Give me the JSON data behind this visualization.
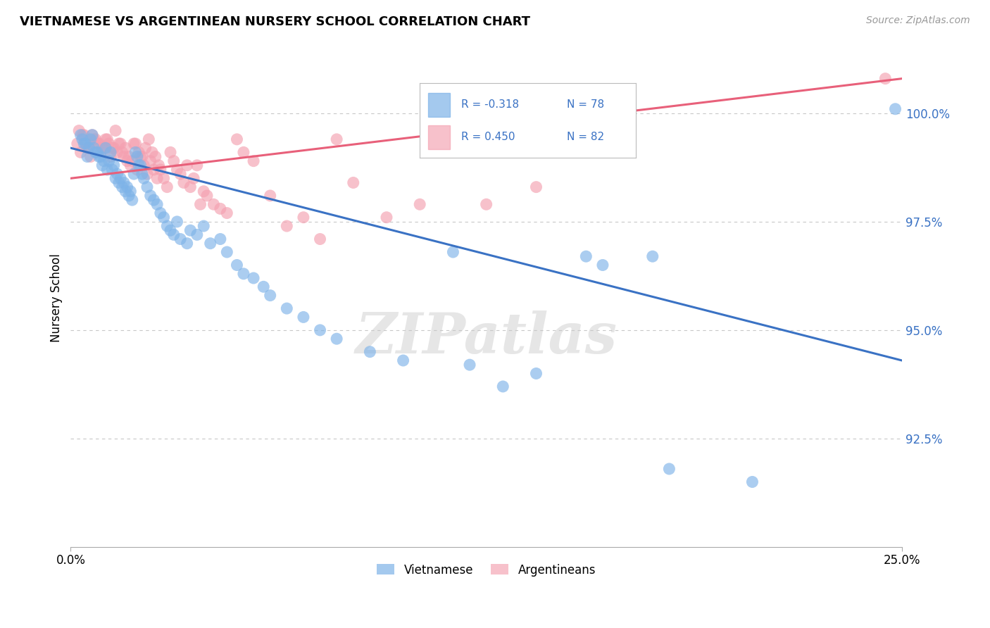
{
  "title": "VIETNAMESE VS ARGENTINEAN NURSERY SCHOOL CORRELATION CHART",
  "source": "Source: ZipAtlas.com",
  "ylabel": "Nursery School",
  "ytick_values": [
    92.5,
    95.0,
    97.5,
    100.0
  ],
  "xlim": [
    0.0,
    25.0
  ],
  "ylim": [
    90.0,
    101.5
  ],
  "blue_color": "#7EB3E8",
  "pink_color": "#F4A0B0",
  "blue_line_color": "#3A72C4",
  "pink_line_color": "#E8607A",
  "blue_R": "-0.318",
  "blue_N": "78",
  "pink_R": "0.450",
  "pink_N": "82",
  "watermark": "ZIPatlas",
  "blue_line_x0": 0.0,
  "blue_line_y0": 99.2,
  "blue_line_x1": 25.0,
  "blue_line_y1": 94.3,
  "pink_line_x0": 0.0,
  "pink_line_y0": 98.5,
  "pink_line_x1": 25.0,
  "pink_line_y1": 100.8,
  "blue_scatter_x": [
    0.3,
    0.4,
    0.5,
    0.6,
    0.7,
    0.8,
    0.9,
    1.0,
    1.1,
    1.2,
    1.3,
    1.4,
    1.5,
    1.6,
    1.7,
    1.8,
    1.9,
    2.0,
    2.1,
    2.2,
    2.3,
    2.4,
    2.5,
    2.6,
    2.7,
    2.8,
    2.9,
    3.0,
    3.1,
    3.2,
    3.3,
    3.5,
    3.6,
    3.8,
    4.0,
    4.2,
    4.5,
    4.7,
    5.0,
    5.2,
    5.5,
    5.8,
    6.0,
    6.5,
    7.0,
    7.5,
    8.0,
    9.0,
    10.0,
    11.5,
    12.0,
    13.0,
    14.0,
    15.5,
    16.0,
    17.5,
    18.0,
    20.5,
    24.8,
    0.35,
    0.45,
    0.55,
    0.65,
    0.75,
    0.85,
    0.95,
    1.05,
    1.15,
    1.25,
    1.35,
    1.45,
    1.55,
    1.65,
    1.75,
    1.85,
    1.95,
    2.05,
    2.15
  ],
  "blue_scatter_y": [
    99.5,
    99.3,
    99.0,
    99.4,
    99.2,
    99.1,
    99.0,
    98.9,
    98.7,
    99.1,
    98.8,
    98.6,
    98.5,
    98.4,
    98.3,
    98.2,
    98.6,
    99.0,
    98.8,
    98.5,
    98.3,
    98.1,
    98.0,
    97.9,
    97.7,
    97.6,
    97.4,
    97.3,
    97.2,
    97.5,
    97.1,
    97.0,
    97.3,
    97.2,
    97.4,
    97.0,
    97.1,
    96.8,
    96.5,
    96.3,
    96.2,
    96.0,
    95.8,
    95.5,
    95.3,
    95.0,
    94.8,
    94.5,
    94.3,
    96.8,
    94.2,
    93.7,
    94.0,
    96.7,
    96.5,
    96.7,
    91.8,
    91.5,
    100.1,
    99.4,
    99.3,
    99.2,
    99.5,
    99.1,
    99.0,
    98.8,
    99.2,
    98.9,
    98.7,
    98.5,
    98.4,
    98.3,
    98.2,
    98.1,
    98.0,
    99.1,
    98.8,
    98.6
  ],
  "pink_scatter_x": [
    0.2,
    0.3,
    0.4,
    0.5,
    0.6,
    0.7,
    0.8,
    0.9,
    1.0,
    1.1,
    1.2,
    1.3,
    1.4,
    1.5,
    1.6,
    1.7,
    1.8,
    1.9,
    2.0,
    2.1,
    2.2,
    2.3,
    2.4,
    2.5,
    2.6,
    2.7,
    2.8,
    2.9,
    3.0,
    3.1,
    3.2,
    3.3,
    3.4,
    3.5,
    3.6,
    3.7,
    3.8,
    3.9,
    4.0,
    4.1,
    4.3,
    4.5,
    4.7,
    5.0,
    5.2,
    5.5,
    6.0,
    6.5,
    7.0,
    7.5,
    8.0,
    8.5,
    9.5,
    10.5,
    12.5,
    14.0,
    0.25,
    0.35,
    0.45,
    0.55,
    0.65,
    0.75,
    0.85,
    0.95,
    1.05,
    1.15,
    1.25,
    1.35,
    1.45,
    1.55,
    1.65,
    1.75,
    1.85,
    1.95,
    2.05,
    2.15,
    2.25,
    2.35,
    2.45,
    2.55,
    2.65,
    24.5
  ],
  "pink_scatter_y": [
    99.3,
    99.1,
    99.5,
    99.2,
    99.0,
    99.4,
    99.3,
    99.1,
    99.2,
    99.4,
    99.0,
    99.2,
    99.1,
    99.3,
    99.0,
    98.9,
    98.8,
    99.3,
    98.7,
    99.0,
    98.8,
    98.6,
    98.9,
    98.7,
    98.5,
    98.7,
    98.5,
    98.3,
    99.1,
    98.9,
    98.7,
    98.6,
    98.4,
    98.8,
    98.3,
    98.5,
    98.8,
    97.9,
    98.2,
    98.1,
    97.9,
    97.8,
    97.7,
    99.4,
    99.1,
    98.9,
    98.1,
    97.4,
    97.6,
    97.1,
    99.4,
    98.4,
    97.6,
    97.9,
    97.9,
    98.3,
    99.6,
    99.5,
    99.3,
    99.2,
    99.5,
    99.4,
    99.3,
    99.2,
    99.4,
    99.3,
    99.2,
    99.6,
    99.3,
    99.1,
    99.2,
    99.0,
    98.9,
    99.3,
    99.1,
    99.0,
    99.2,
    99.4,
    99.1,
    99.0,
    98.8,
    100.8
  ]
}
